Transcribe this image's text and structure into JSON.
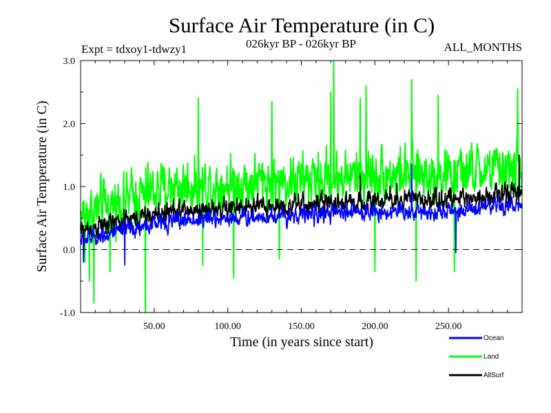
{
  "chart_data": {
    "type": "line",
    "title": "Surface Air Temperature (in C)",
    "subtitle_left": "Expt = tdxoy1-tdwzy1",
    "subtitle_center": "026kyr BP - 026kyr BP",
    "subtitle_right": "ALL_MONTHS",
    "xlabel": "Time (in years since start)",
    "ylabel": "Surface Air Temperature (in C)",
    "xlim": [
      0,
      300
    ],
    "ylim": [
      -1.0,
      3.0
    ],
    "x_ticks": [
      50,
      100,
      150,
      200,
      250
    ],
    "x_tick_labels": [
      "50.00",
      "100.00",
      "150.00",
      "200.00",
      "250.00"
    ],
    "y_ticks": [
      -1.0,
      0.0,
      1.0,
      2.0,
      3.0
    ],
    "y_tick_labels": [
      "-1.0",
      "0.0",
      "1.0",
      "2.0",
      "3.0"
    ],
    "reference_line": {
      "y": 0.0,
      "style": "dashed"
    },
    "samples_per_year": 4,
    "series": [
      {
        "name": "Land",
        "color": "#00ff00",
        "baseline": [
          [
            0,
            0.55
          ],
          [
            30,
            0.8
          ],
          [
            60,
            1.0
          ],
          [
            100,
            1.05
          ],
          [
            150,
            1.1
          ],
          [
            200,
            1.2
          ],
          [
            250,
            1.2
          ],
          [
            300,
            1.3
          ]
        ],
        "noise": 0.42,
        "extremes": [
          [
            3,
            -0.2
          ],
          [
            6,
            -0.5
          ],
          [
            9,
            -0.85
          ],
          [
            20,
            -0.35
          ],
          [
            44,
            -1.0
          ],
          [
            80,
            2.4
          ],
          [
            83,
            -0.25
          ],
          [
            104,
            -0.45
          ],
          [
            130,
            2.35
          ],
          [
            135,
            -0.15
          ],
          [
            172,
            3.0
          ],
          [
            170,
            2.5
          ],
          [
            190,
            2.4
          ],
          [
            194,
            2.6
          ],
          [
            200,
            -0.35
          ],
          [
            225,
            2.7
          ],
          [
            228,
            -0.5
          ],
          [
            243,
            2.45
          ],
          [
            254,
            -0.35
          ],
          [
            297,
            2.55
          ]
        ]
      },
      {
        "name": "AllSurf",
        "color": "#000000",
        "baseline": [
          [
            0,
            0.3
          ],
          [
            30,
            0.45
          ],
          [
            60,
            0.6
          ],
          [
            100,
            0.65
          ],
          [
            150,
            0.7
          ],
          [
            200,
            0.78
          ],
          [
            250,
            0.8
          ],
          [
            300,
            0.9
          ]
        ],
        "noise": 0.17,
        "extremes": [
          [
            190,
            1.2
          ],
          [
            215,
            1.05
          ],
          [
            298,
            1.5
          ]
        ]
      },
      {
        "name": "Ocean",
        "color": "#0000ff",
        "baseline": [
          [
            0,
            0.15
          ],
          [
            30,
            0.3
          ],
          [
            60,
            0.45
          ],
          [
            100,
            0.5
          ],
          [
            150,
            0.55
          ],
          [
            200,
            0.6
          ],
          [
            250,
            0.6
          ],
          [
            300,
            0.7
          ]
        ],
        "noise": 0.14,
        "extremes": [
          [
            2,
            -0.2
          ],
          [
            30,
            -0.25
          ],
          [
            225,
            1.35
          ],
          [
            255,
            -0.05
          ]
        ]
      }
    ],
    "legend": [
      {
        "name": "Ocean",
        "color": "#0000ff"
      },
      {
        "name": "Land",
        "color": "#00ff00"
      },
      {
        "name": "AllSurf",
        "color": "#000000"
      }
    ],
    "legend_position": "bottom-right"
  }
}
